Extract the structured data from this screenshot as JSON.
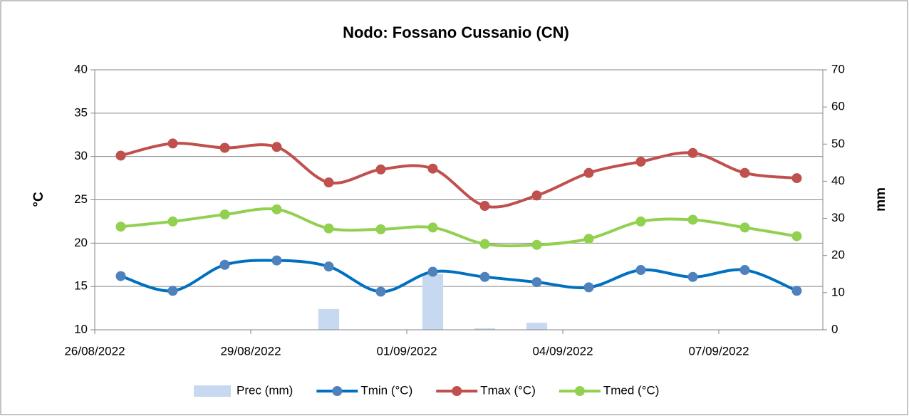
{
  "chart_data": {
    "type": "line",
    "title": "Nodo: Fossano Cussanio (CN)",
    "y_label": "°C",
    "y2_label": "mm",
    "categories": [
      "26/08/2022",
      null,
      null,
      "29/08/2022",
      null,
      null,
      "01/09/2022",
      null,
      null,
      "04/09/2022",
      null,
      null,
      "07/09/2022",
      null
    ],
    "ylim": [
      10,
      40
    ],
    "yticks": [
      10,
      15,
      20,
      25,
      30,
      35,
      40
    ],
    "y2lim": [
      0,
      70
    ],
    "y2ticks": [
      0,
      10,
      20,
      30,
      40,
      50,
      60,
      70
    ],
    "grid": true,
    "legend": "bottom",
    "series": [
      {
        "name": "Prec (mm)",
        "type": "bar",
        "axis": "y2",
        "color": "#c6d9f1",
        "values": [
          0,
          0,
          0,
          0,
          5.6,
          0,
          15,
          0.4,
          1.9,
          0,
          0,
          0,
          0,
          0
        ]
      },
      {
        "name": "Tmin (°C)",
        "type": "line",
        "color": "#0070c0",
        "marker_color": "#4f81bd",
        "values": [
          16.2,
          14.5,
          17.5,
          18.0,
          17.3,
          14.4,
          16.7,
          16.1,
          15.5,
          14.9,
          16.9,
          16.1,
          16.9,
          14.5
        ]
      },
      {
        "name": "Tmax (°C)",
        "type": "line",
        "color": "#c0504d",
        "marker_color": "#c0504d",
        "values": [
          30.1,
          31.5,
          31.0,
          31.1,
          27.0,
          28.5,
          28.6,
          24.3,
          25.5,
          28.1,
          29.4,
          30.4,
          28.1,
          27.5
        ]
      },
      {
        "name": "Tmed (°C)",
        "type": "line",
        "color": "#92d050",
        "marker_color": "#92d050",
        "values": [
          21.9,
          22.5,
          23.3,
          23.9,
          21.7,
          21.6,
          21.8,
          19.9,
          19.8,
          20.5,
          22.5,
          22.7,
          21.8,
          20.8
        ]
      }
    ]
  }
}
